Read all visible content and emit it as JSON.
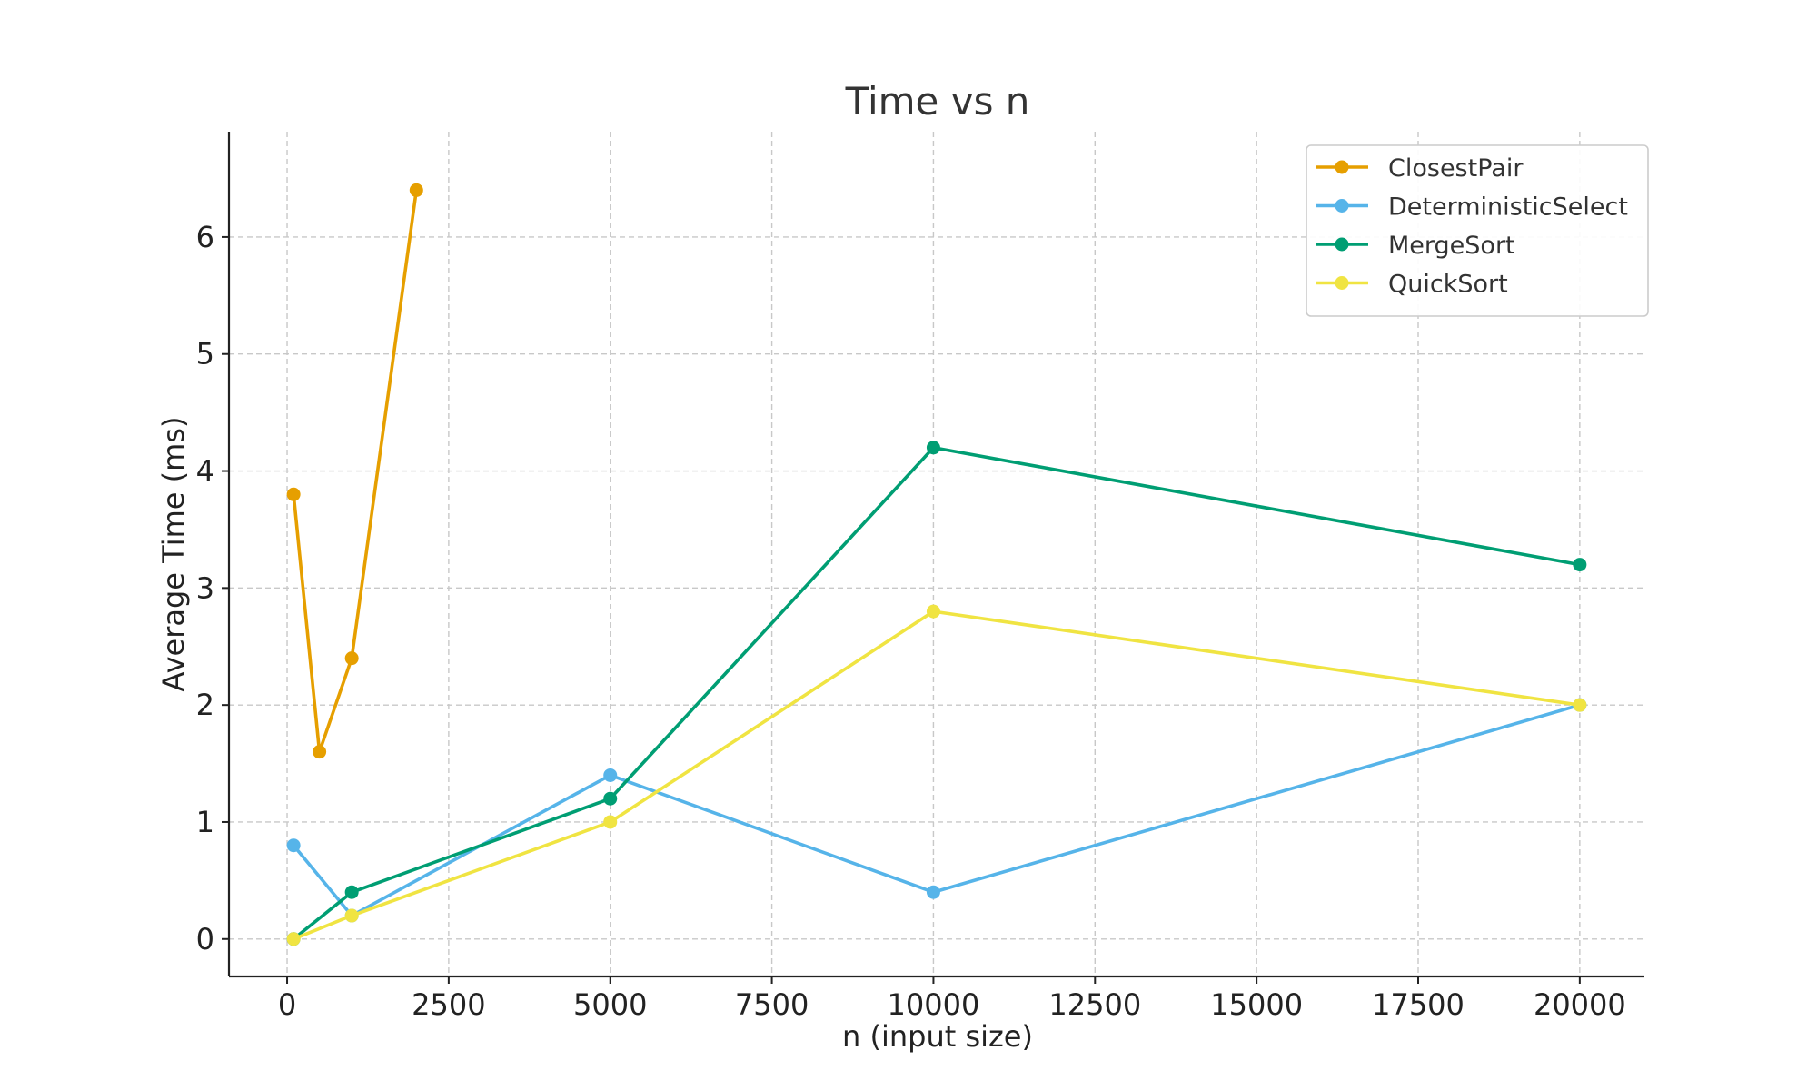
{
  "chart_data": {
    "type": "line",
    "title": "Time vs n",
    "xlabel": "n (input size)",
    "ylabel": "Average Time (ms)",
    "xlim": [
      -900,
      21000
    ],
    "ylim": [
      -0.32,
      6.9
    ],
    "xticks": [
      0,
      2500,
      5000,
      7500,
      10000,
      12500,
      15000,
      17500,
      20000
    ],
    "yticks": [
      0,
      1,
      2,
      3,
      4,
      5,
      6
    ],
    "grid": true,
    "legend_position": "top-right",
    "series": [
      {
        "name": "ClosestPair",
        "color": "#E69F00",
        "x": [
          100,
          500,
          1000,
          2000
        ],
        "y": [
          3.8,
          1.6,
          2.4,
          6.4
        ]
      },
      {
        "name": "DeterministicSelect",
        "color": "#56B4E9",
        "x": [
          100,
          1000,
          5000,
          10000,
          20000
        ],
        "y": [
          0.8,
          0.2,
          1.4,
          0.4,
          2.0
        ]
      },
      {
        "name": "MergeSort",
        "color": "#009E73",
        "x": [
          100,
          1000,
          5000,
          10000,
          20000
        ],
        "y": [
          0.0,
          0.4,
          1.2,
          4.2,
          3.2
        ]
      },
      {
        "name": "QuickSort",
        "color": "#F0E442",
        "x": [
          100,
          1000,
          5000,
          10000,
          20000
        ],
        "y": [
          0.0,
          0.2,
          1.0,
          2.8,
          2.0
        ]
      }
    ]
  }
}
